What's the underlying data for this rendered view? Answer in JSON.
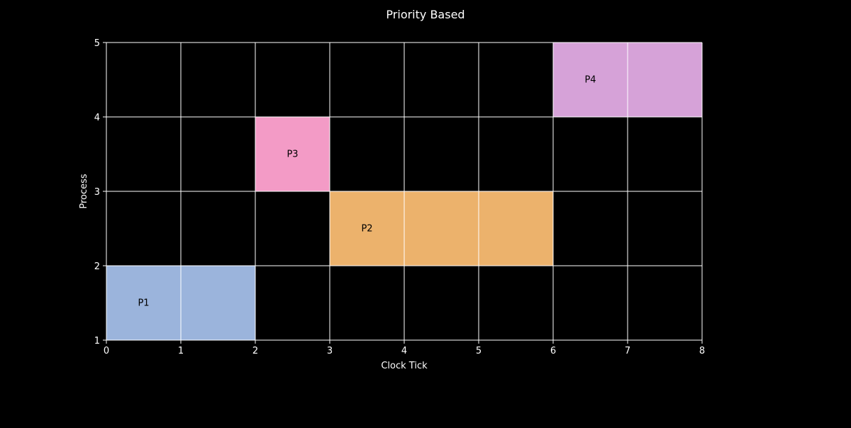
{
  "chart_data": {
    "type": "gantt",
    "title": "Priority Based",
    "xlabel": "Clock Tick",
    "ylabel": "Process",
    "xlim": [
      0,
      8
    ],
    "ylim": [
      1,
      5
    ],
    "xticks": [
      "0",
      "1",
      "2",
      "3",
      "4",
      "5",
      "6",
      "7",
      "8"
    ],
    "yticks": [
      "1",
      "2",
      "3",
      "4",
      "5"
    ],
    "grid": true,
    "background": "#000000",
    "grid_color": "#ffffff",
    "text_color": "#ffffff",
    "label_color": "#000000",
    "tasks": [
      {
        "name": "P1",
        "start": 0,
        "end": 2,
        "y0": 1,
        "y1": 2,
        "color": "#9bb4dc"
      },
      {
        "name": "P2",
        "start": 3,
        "end": 6,
        "y0": 2,
        "y1": 3,
        "color": "#ecb26c"
      },
      {
        "name": "P3",
        "start": 2,
        "end": 3,
        "y0": 3,
        "y1": 4,
        "color": "#f39bc6"
      },
      {
        "name": "P4",
        "start": 6,
        "end": 8,
        "y0": 4,
        "y1": 5,
        "color": "#d6a2d8"
      }
    ]
  }
}
